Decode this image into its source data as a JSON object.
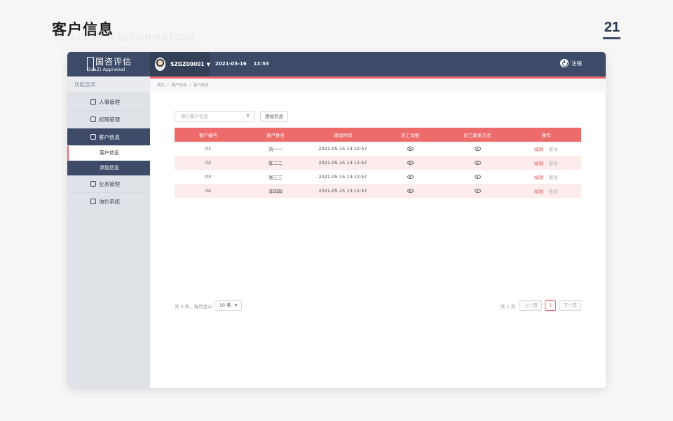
{
  "slide": {
    "title": "客户信息",
    "subtitle": "CUSTOMER INFORMATION",
    "page_number": "21"
  },
  "header": {
    "logo_cn": "国咨评估",
    "logo_en": "GuoZi Appraisal",
    "user_id": "SZGZ00001",
    "date": "2021-05-16",
    "time": "13:55",
    "logout_label": "注销"
  },
  "sidebar": {
    "heading": "功能选项",
    "items": [
      {
        "label": "人事管理",
        "icon": "people-icon"
      },
      {
        "label": "权限管理",
        "icon": "user-permission-icon"
      },
      {
        "label": "客户信息",
        "icon": "customer-info-icon"
      },
      {
        "label": "业务管理",
        "icon": "clipboard-icon"
      },
      {
        "label": "询价系统",
        "icon": "cloud-icon"
      }
    ],
    "submenu": [
      "客户信息",
      "添加信息"
    ]
  },
  "breadcrumb": [
    "首页",
    "/",
    "客户信息",
    "/",
    "客户信息"
  ],
  "toolbar": {
    "select_placeholder": "银行客户信息",
    "add_button": "添加信息"
  },
  "table": {
    "headers": [
      "客户编号",
      "客户姓名",
      "添加时间",
      "员工详细",
      "员工联系方式",
      "操作"
    ],
    "rows": [
      {
        "id": "01",
        "name": "刘一一",
        "time": "2021-05-15 13:12:57"
      },
      {
        "id": "02",
        "name": "陈二二",
        "time": "2021-05-15 13:12:57"
      },
      {
        "id": "03",
        "name": "张三三",
        "time": "2021-05-15 13:12:57"
      },
      {
        "id": "04",
        "name": "李四四",
        "time": "2021-05-15 13:12:57"
      }
    ],
    "edit_label": "编辑",
    "delete_label": "删除"
  },
  "pagination": {
    "summary": "共 4 条，每页显示",
    "page_size": "10 条",
    "total_pages": "共 1 页",
    "prev": "上一页",
    "current": "1",
    "next": "下一页"
  },
  "colors": {
    "nav": "#3e4b68",
    "accent": "#ee6b6b",
    "row_alt": "#fdecec"
  }
}
